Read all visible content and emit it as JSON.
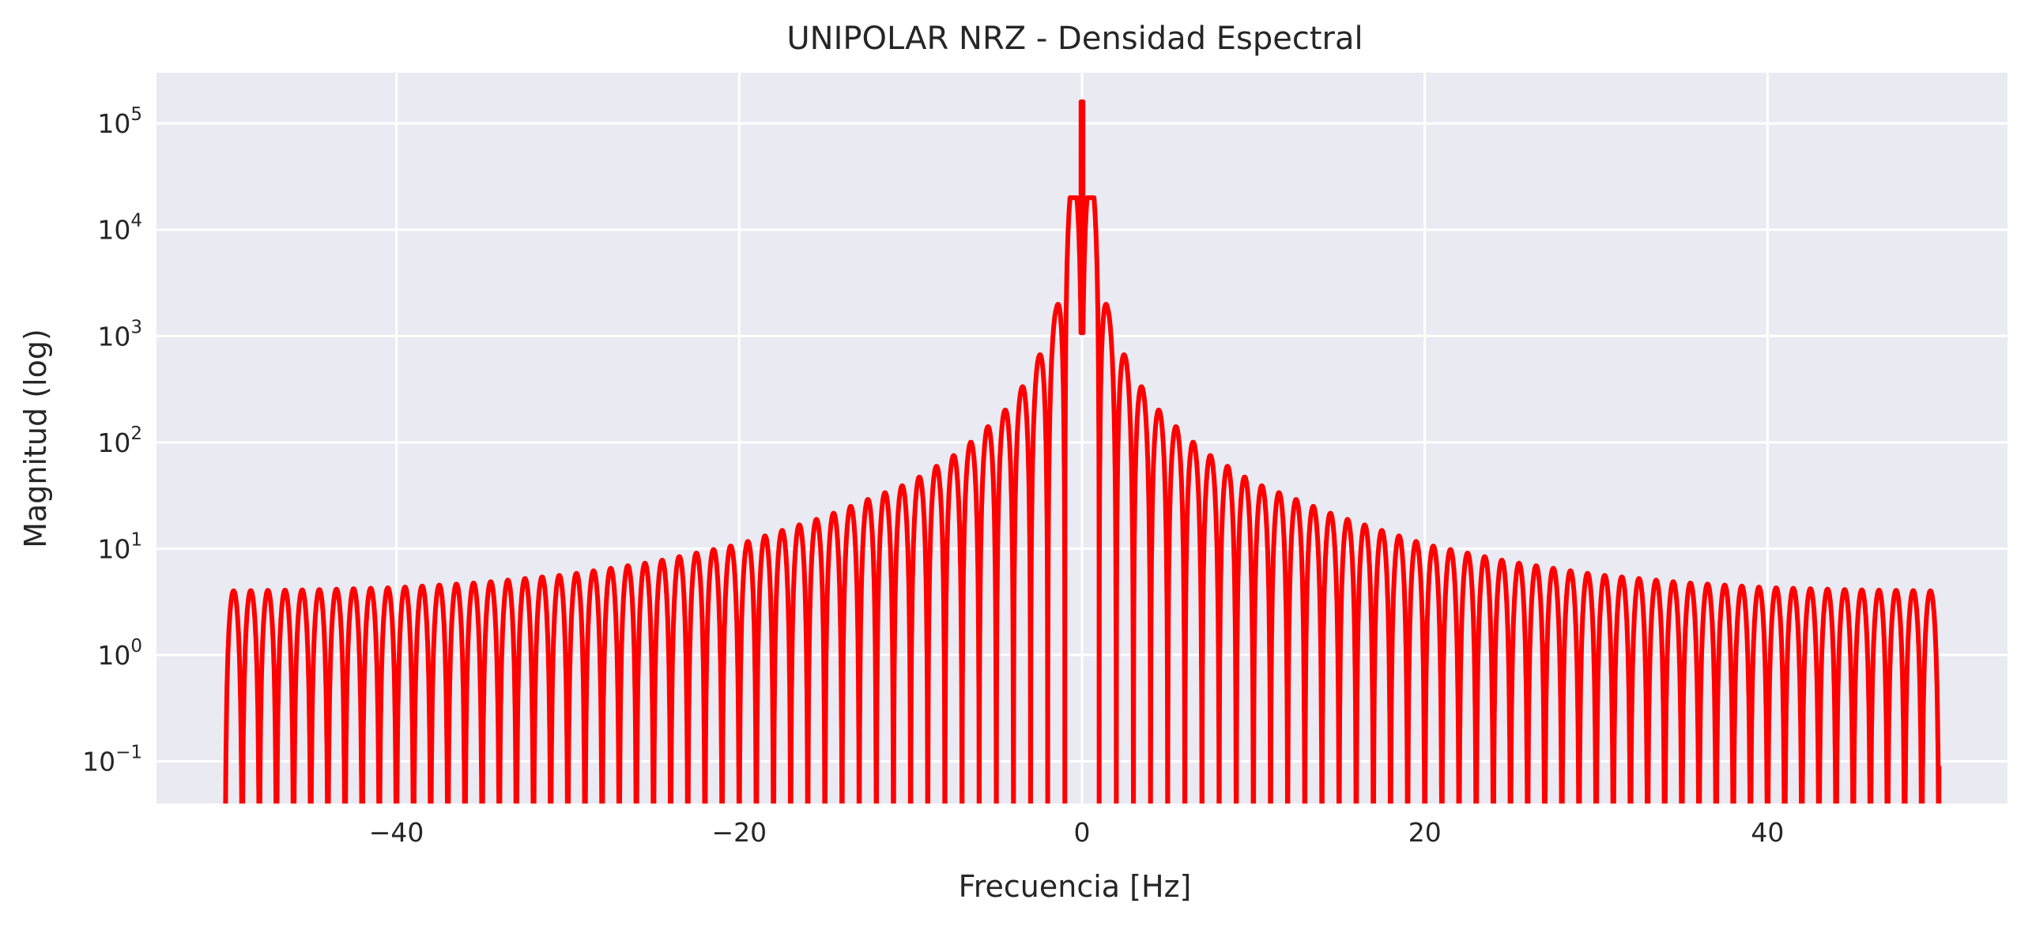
{
  "chart_data": {
    "type": "line",
    "title": "UNIPOLAR NRZ - Densidad Espectral",
    "xlabel": "Frecuencia [Hz]",
    "ylabel": "Magnitud (log)",
    "x_scale": "linear",
    "y_scale": "log",
    "xlim": [
      -54,
      54
    ],
    "ylim": [
      0.04,
      300000
    ],
    "xticks": [
      -40,
      -20,
      0,
      20,
      40
    ],
    "xtick_labels": [
      "−40",
      "−20",
      "0",
      "20",
      "40"
    ],
    "yticks": [
      0.1,
      1,
      10,
      100,
      1000,
      10000,
      100000
    ],
    "ytick_labels": [
      {
        "base": "10",
        "exp": "−1"
      },
      {
        "base": "10",
        "exp": "0"
      },
      {
        "base": "10",
        "exp": "1"
      },
      {
        "base": "10",
        "exp": "2"
      },
      {
        "base": "10",
        "exp": "3"
      },
      {
        "base": "10",
        "exp": "4"
      },
      {
        "base": "10",
        "exp": "5"
      }
    ],
    "grid": true,
    "legend": "none",
    "series": [
      {
        "color": "#ff0000",
        "x_range": [
          -50,
          50
        ],
        "lobe_spacing_hz": 1,
        "dc_peak": {
          "x": 0,
          "y": 160000
        },
        "main_lobe_peak": 20000,
        "sidelobe_floor": 4,
        "envelope_points": [
          {
            "x": 0.3,
            "y": 20000
          },
          {
            "x": 1.5,
            "y": 1800
          },
          {
            "x": 2.5,
            "y": 650
          },
          {
            "x": 3.5,
            "y": 330
          },
          {
            "x": 4.5,
            "y": 200
          },
          {
            "x": 5.5,
            "y": 140
          },
          {
            "x": 6.5,
            "y": 100
          },
          {
            "x": 7.5,
            "y": 75
          },
          {
            "x": 10,
            "y": 42
          },
          {
            "x": 15,
            "y": 20
          },
          {
            "x": 20,
            "y": 11
          },
          {
            "x": 25,
            "y": 7.5
          },
          {
            "x": 30,
            "y": 5.7
          },
          {
            "x": 35,
            "y": 4.8
          },
          {
            "x": 40,
            "y": 4.3
          },
          {
            "x": 45,
            "y": 4.1
          },
          {
            "x": 50,
            "y": 4.0
          }
        ],
        "end_value": 0.09
      }
    ]
  }
}
